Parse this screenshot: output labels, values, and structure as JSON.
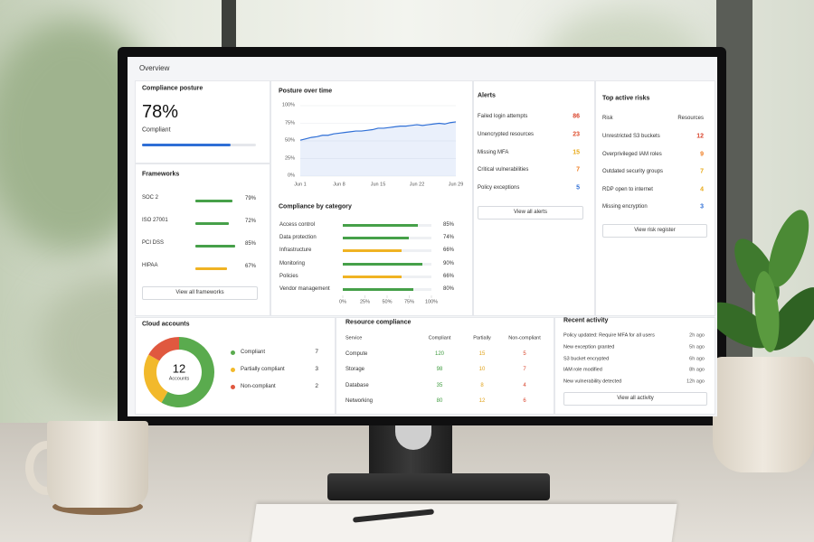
{
  "header": {
    "title": "Overview"
  },
  "posture": {
    "title": "Compliance posture",
    "value": 78,
    "label": "78%",
    "status": "Compliant",
    "color": "#2f6fd6"
  },
  "frameworks": {
    "title": "Frameworks",
    "items": [
      {
        "name": "SOC 2",
        "value": 79,
        "label": "79%",
        "color": "#46a049"
      },
      {
        "name": "ISO 27001",
        "value": 72,
        "label": "72%",
        "color": "#46a049"
      },
      {
        "name": "PCI DSS",
        "value": 85,
        "label": "85%",
        "color": "#46a049"
      },
      {
        "name": "HIPAA",
        "value": 67,
        "label": "67%",
        "color": "#f0b323"
      }
    ],
    "button": "View all frameworks"
  },
  "posture_over_time": {
    "title": "Posture over time",
    "x": [
      1,
      2,
      3,
      4,
      5,
      6,
      7,
      8,
      9,
      10,
      11,
      12,
      13,
      14,
      15,
      16,
      17,
      18,
      19,
      20,
      21,
      22,
      23,
      24,
      25,
      26,
      27,
      28,
      29
    ],
    "values": [
      51,
      53,
      55,
      56,
      58,
      58,
      60,
      61,
      62,
      63,
      64,
      64,
      65,
      66,
      68,
      68,
      69,
      70,
      71,
      71,
      72,
      73,
      72,
      73,
      74,
      75,
      74,
      76,
      77
    ],
    "xlim": [
      1,
      29
    ],
    "xticks": [
      {
        "value": 1,
        "label": "Jun 1"
      },
      {
        "value": 8,
        "label": "Jun 8"
      },
      {
        "value": 15,
        "label": "Jun 15"
      },
      {
        "value": 22,
        "label": "Jun 22"
      },
      {
        "value": 29,
        "label": "Jun 29"
      }
    ],
    "ylim": [
      0,
      100
    ],
    "yticks": [
      {
        "value": 0,
        "label": "0%"
      },
      {
        "value": 25,
        "label": "25%"
      },
      {
        "value": 50,
        "label": "50%"
      },
      {
        "value": 75,
        "label": "75%"
      },
      {
        "value": 100,
        "label": "100%"
      }
    ],
    "color": "#2f6fd6"
  },
  "category": {
    "title": "Compliance by category",
    "items": [
      {
        "name": "Access control",
        "value": 85,
        "label": "85%",
        "color": "#46a049"
      },
      {
        "name": "Data protection",
        "value": 74,
        "label": "74%",
        "color": "#46a049"
      },
      {
        "name": "Infrastructure",
        "value": 66,
        "label": "66%",
        "color": "#f0b323"
      },
      {
        "name": "Monitoring",
        "value": 90,
        "label": "90%",
        "color": "#46a049"
      },
      {
        "name": "Policies",
        "value": 66,
        "label": "66%",
        "color": "#f0b323"
      },
      {
        "name": "Vendor management",
        "value": 80,
        "label": "80%",
        "color": "#46a049"
      }
    ],
    "xlim": [
      0,
      100
    ],
    "xticks": [
      {
        "value": 0,
        "label": "0%"
      },
      {
        "value": 25,
        "label": "25%"
      },
      {
        "value": 50,
        "label": "50%"
      },
      {
        "value": 75,
        "label": "75%"
      },
      {
        "value": 100,
        "label": "100%"
      }
    ]
  },
  "alerts": {
    "title": "Alerts",
    "items": [
      {
        "name": "Failed login attempts",
        "value": 86,
        "color": "#d9442c"
      },
      {
        "name": "Unencrypted resources",
        "value": 23,
        "color": "#e0502f"
      },
      {
        "name": "Missing MFA",
        "value": 15,
        "color": "#e8a918"
      },
      {
        "name": "Critical vulnerabilities",
        "value": 7,
        "color": "#ef7d22"
      },
      {
        "name": "Policy exceptions",
        "value": 5,
        "color": "#2f6fd6"
      }
    ],
    "button": "View all alerts"
  },
  "risks": {
    "title": "Top active risks",
    "columns": [
      "Risk",
      "Resources"
    ],
    "items": [
      {
        "name": "Unrestricted S3 buckets",
        "value": 12,
        "color": "#d9442c"
      },
      {
        "name": "Overprivileged IAM roles",
        "value": 9,
        "color": "#ef7d22"
      },
      {
        "name": "Outdated security groups",
        "value": 7,
        "color": "#e8a918"
      },
      {
        "name": "RDP open to internet",
        "value": 4,
        "color": "#e8a918"
      },
      {
        "name": "Missing encryption",
        "value": 3,
        "color": "#2f6fd6"
      }
    ],
    "button": "View risk register"
  },
  "cloud_accounts": {
    "title": "Cloud accounts",
    "total": 12,
    "total_label": "Accounts",
    "items": [
      {
        "name": "Compliant",
        "value": 7,
        "color": "#5aab4e"
      },
      {
        "name": "Partially compliant",
        "value": 3,
        "color": "#f2b92b"
      },
      {
        "name": "Non-compliant",
        "value": 2,
        "color": "#e0583f"
      }
    ]
  },
  "resource_compliance": {
    "title": "Resource compliance",
    "columns": [
      "Service",
      "Compliant",
      "Partially",
      "Non-compliant"
    ],
    "column_colors": [
      "#3e9b3e",
      "#e0a21a",
      "#d9442c"
    ],
    "rows": [
      [
        "Compute",
        120,
        15,
        5
      ],
      [
        "Storage",
        98,
        10,
        7
      ],
      [
        "Database",
        35,
        8,
        4
      ],
      [
        "Networking",
        80,
        12,
        6
      ]
    ]
  },
  "recent_activity": {
    "title": "Recent activity",
    "items": [
      {
        "text": "Policy updated: Require MFA for all users",
        "time": "2h ago"
      },
      {
        "text": "New exception granted",
        "time": "5h ago"
      },
      {
        "text": "S3 bucket encrypted",
        "time": "6h ago"
      },
      {
        "text": "IAM role modified",
        "time": "8h ago"
      },
      {
        "text": "New vulnerability detected",
        "time": "12h ago"
      }
    ],
    "button": "View all activity"
  }
}
